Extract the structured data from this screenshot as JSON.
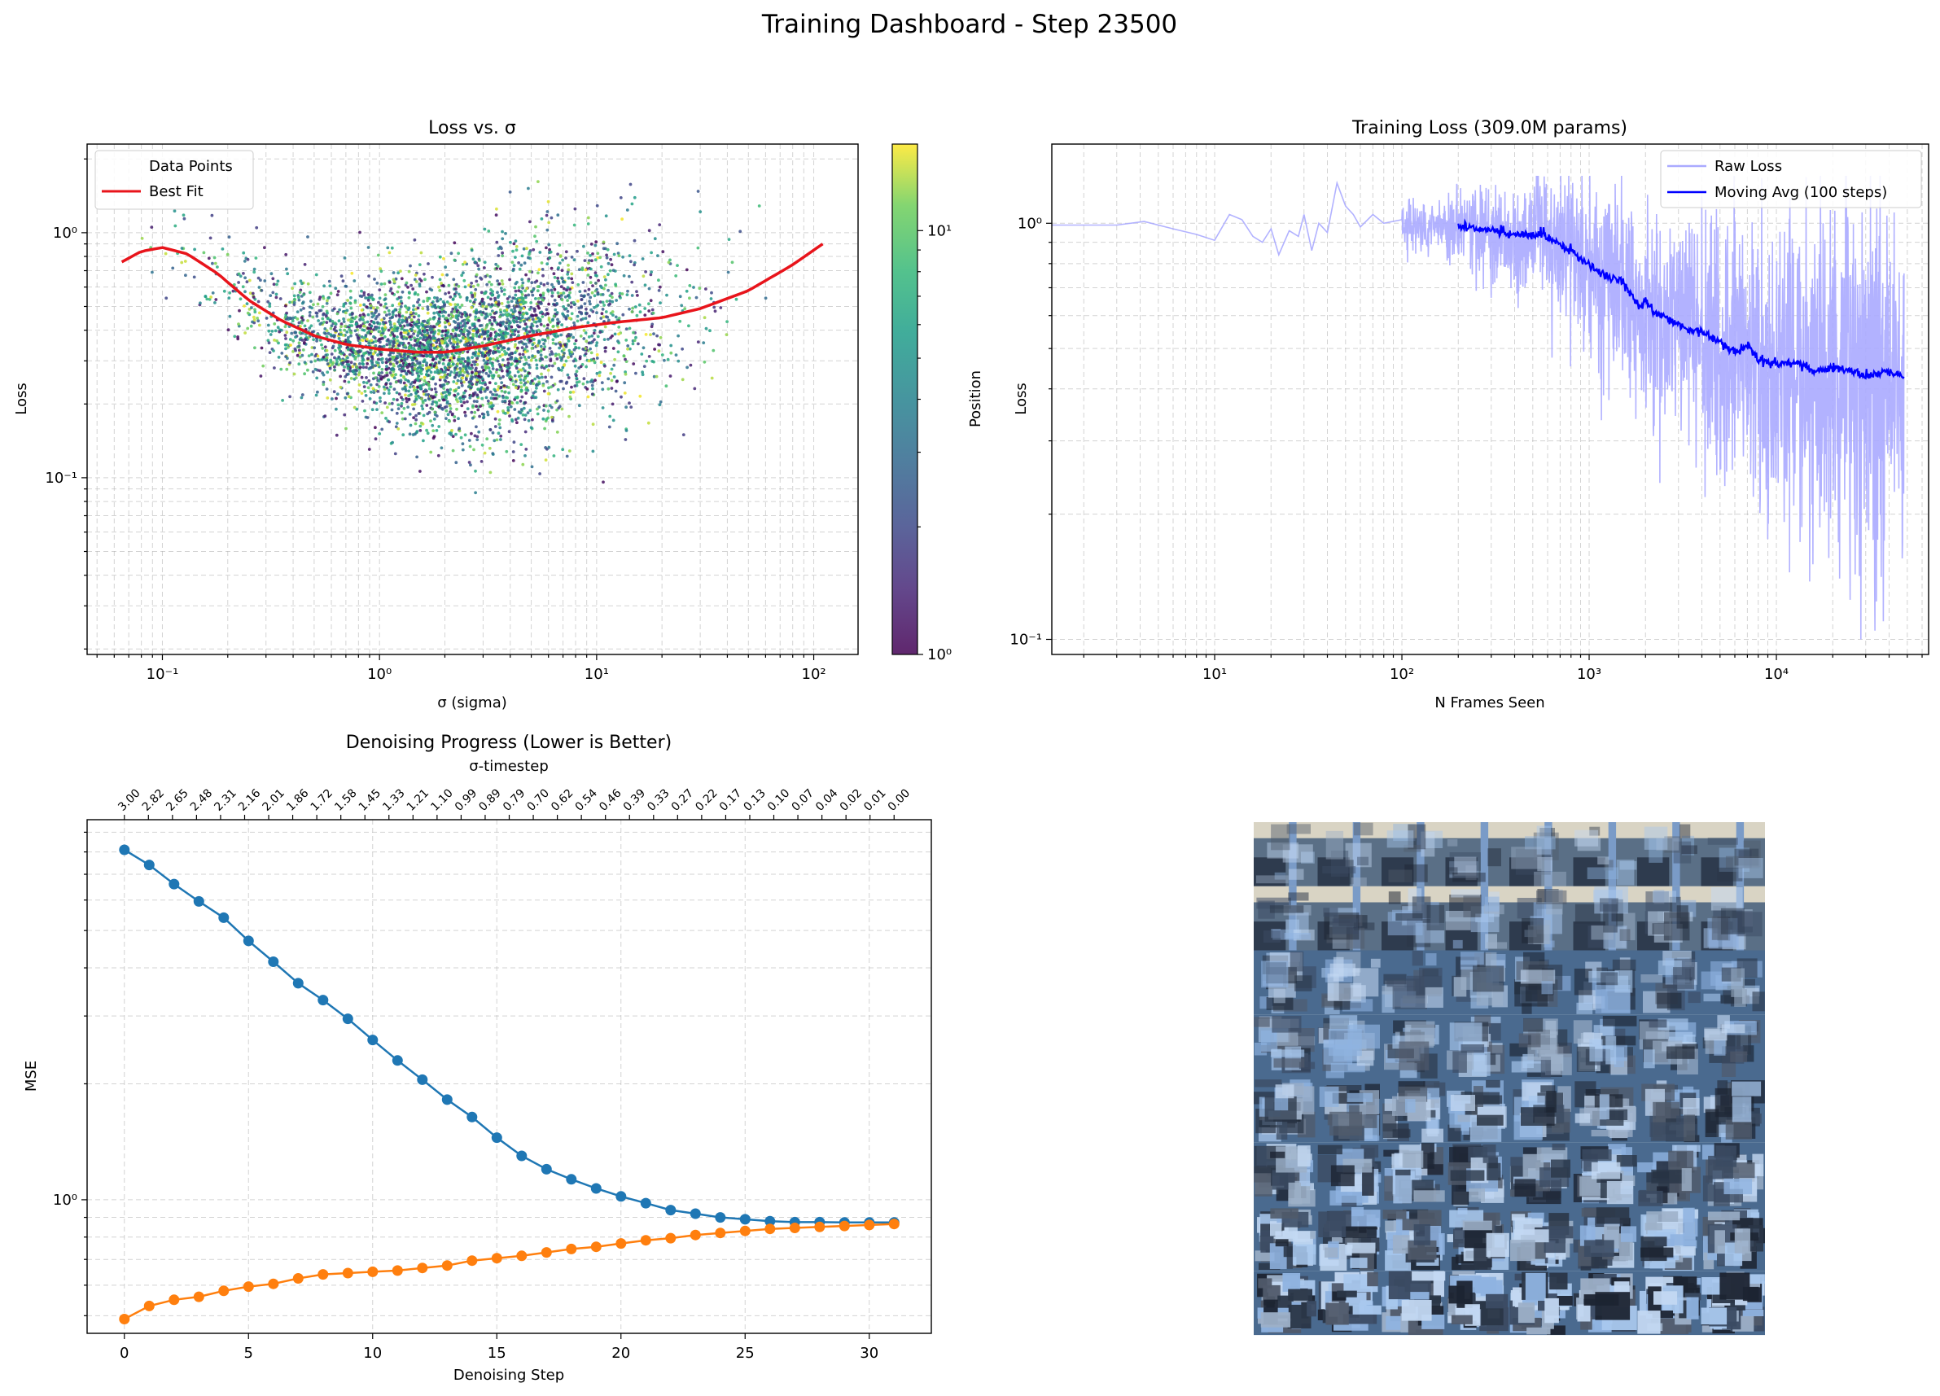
{
  "figure": {
    "suptitle": "Training Dashboard - Step 23500"
  },
  "chart_data": [
    {
      "id": "loss_vs_sigma",
      "type": "scatter",
      "title": "Loss vs. σ",
      "xlabel": "σ (sigma)",
      "ylabel": "Loss",
      "xscale": "log",
      "yscale": "log",
      "xlim": [
        0.045,
        160
      ],
      "ylim": [
        0.019,
        2.3
      ],
      "grid": true,
      "xticks": [
        {
          "v": 0.1,
          "label": "10⁻¹"
        },
        {
          "v": 1,
          "label": "10⁰"
        },
        {
          "v": 10,
          "label": "10¹"
        },
        {
          "v": 100,
          "label": "10²"
        }
      ],
      "yticks": [
        {
          "v": 0.1,
          "label": "10⁻¹"
        },
        {
          "v": 1,
          "label": "10⁰"
        }
      ],
      "legend": {
        "placement": "upper-left",
        "entries": [
          "Data Points",
          "Best Fit"
        ]
      },
      "colorbar": {
        "label": "Position",
        "scale": "log",
        "range": [
          1,
          16
        ],
        "ticks": [
          {
            "v": 1,
            "label": "10⁰"
          },
          {
            "v": 10,
            "label": "10¹"
          }
        ],
        "colormap": "viridis"
      },
      "scatter_summary": {
        "n_points_approx": 4000,
        "log10_sigma_center": 0.35,
        "log10_sigma_spread": 0.45,
        "log10_sigma_range": [
          -1.15,
          2.0
        ],
        "color_range": [
          1,
          16
        ]
      },
      "series": [
        {
          "name": "Best Fit",
          "color": "#e8141b",
          "x": [
            0.065,
            0.08,
            0.1,
            0.13,
            0.18,
            0.25,
            0.35,
            0.5,
            0.7,
            1.0,
            1.5,
            2.0,
            3.0,
            5.0,
            8.0,
            12.0,
            20.0,
            30.0,
            50.0,
            80.0,
            110.0
          ],
          "y": [
            0.76,
            0.84,
            0.87,
            0.82,
            0.68,
            0.53,
            0.44,
            0.38,
            0.35,
            0.335,
            0.325,
            0.325,
            0.345,
            0.38,
            0.41,
            0.43,
            0.45,
            0.49,
            0.58,
            0.74,
            0.9
          ]
        }
      ]
    },
    {
      "id": "training_loss",
      "type": "line",
      "title": "Training Loss (309.0M params)",
      "xlabel": "N Frames Seen",
      "ylabel": "Loss",
      "xscale": "log",
      "yscale": "log",
      "xlim": [
        1.35,
        65000
      ],
      "ylim": [
        0.092,
        1.55
      ],
      "grid": true,
      "xticks": [
        {
          "v": 10,
          "label": "10¹"
        },
        {
          "v": 100,
          "label": "10²"
        },
        {
          "v": 1000,
          "label": "10³"
        },
        {
          "v": 10000,
          "label": "10⁴"
        }
      ],
      "yticks": [
        {
          "v": 0.1,
          "label": "10⁻¹"
        },
        {
          "v": 1,
          "label": "10⁰"
        }
      ],
      "legend": {
        "placement": "upper-right",
        "entries": [
          "Raw Loss",
          "Moving Avg (100 steps)"
        ]
      },
      "series": [
        {
          "name": "Raw Loss",
          "color": "#aaaaff",
          "x": [
            1.35,
            2,
            3,
            4.2,
            6,
            8,
            10,
            12,
            14,
            16,
            18,
            20,
            22,
            25,
            28,
            30,
            33,
            36,
            40,
            45,
            50,
            55,
            60,
            70,
            80,
            100
          ],
          "y": [
            0.99,
            0.99,
            0.99,
            1.01,
            0.97,
            0.94,
            0.91,
            1.05,
            1.02,
            0.93,
            0.9,
            0.97,
            0.84,
            0.96,
            0.93,
            1.05,
            0.86,
            1.0,
            0.95,
            1.25,
            1.1,
            1.05,
            0.98,
            1.05,
            1.0,
            1.02
          ]
        },
        {
          "name": "Moving Avg (100 steps)",
          "color": "#0000ff",
          "x": [
            200,
            300,
            400,
            500,
            550,
            600,
            700,
            800,
            1000,
            1200,
            1500,
            1700,
            1900,
            2000,
            2200,
            2500,
            3000,
            3500,
            4000,
            5000,
            6000,
            7000,
            8000,
            10000,
            13000,
            16000,
            20000,
            25000,
            30000,
            40000,
            48000
          ],
          "y": [
            0.98,
            0.96,
            0.94,
            0.94,
            0.95,
            0.93,
            0.89,
            0.86,
            0.79,
            0.75,
            0.73,
            0.67,
            0.62,
            0.66,
            0.61,
            0.6,
            0.57,
            0.55,
            0.55,
            0.52,
            0.49,
            0.51,
            0.47,
            0.46,
            0.46,
            0.44,
            0.45,
            0.44,
            0.43,
            0.44,
            0.43
          ]
        }
      ]
    },
    {
      "id": "denoising_progress",
      "type": "line",
      "title": "Denoising Progress (Lower is Better)",
      "xlabel": "Denoising Step",
      "ylabel": "MSE",
      "top_xlabel": "σ-timestep",
      "yscale": "log",
      "xlim": [
        -1.5,
        32.5
      ],
      "ylim": [
        0.45,
        9.7
      ],
      "grid": true,
      "xticks": [
        0,
        5,
        10,
        15,
        20,
        25,
        30
      ],
      "yticks": [
        {
          "v": 1,
          "label": "10⁰"
        }
      ],
      "top_ticks": [
        "3.00",
        "2.82",
        "2.65",
        "2.48",
        "2.31",
        "2.16",
        "2.01",
        "1.86",
        "1.72",
        "1.58",
        "1.45",
        "1.33",
        "1.21",
        "1.10",
        "0.99",
        "0.89",
        "0.79",
        "0.70",
        "0.62",
        "0.54",
        "0.46",
        "0.39",
        "0.33",
        "0.27",
        "0.22",
        "0.17",
        "0.13",
        "0.10",
        "0.07",
        "0.04",
        "0.02",
        "0.01",
        "0.00"
      ],
      "top_positions": [
        0,
        0.969,
        1.938,
        2.906,
        3.875,
        4.844,
        5.813,
        6.781,
        7.75,
        8.719,
        9.688,
        10.656,
        11.625,
        12.594,
        13.563,
        14.531,
        15.5,
        16.469,
        17.438,
        18.406,
        19.375,
        20.344,
        21.313,
        22.281,
        23.25,
        24.219,
        25.188,
        26.156,
        27.125,
        28.094,
        29.063,
        30.031,
        31.0
      ],
      "series": [
        {
          "name": "",
          "color": "#1f77b4",
          "x": [
            0,
            1,
            2,
            3,
            4,
            5,
            6,
            7,
            8,
            9,
            10,
            11,
            12,
            13,
            14,
            15,
            16,
            17,
            18,
            19,
            20,
            21,
            22,
            23,
            24,
            25,
            26,
            27,
            28,
            29,
            30,
            31
          ],
          "y": [
            8.1,
            7.4,
            6.6,
            5.95,
            5.4,
            4.7,
            4.15,
            3.65,
            3.3,
            2.95,
            2.6,
            2.3,
            2.05,
            1.82,
            1.64,
            1.45,
            1.3,
            1.2,
            1.13,
            1.07,
            1.02,
            0.98,
            0.94,
            0.92,
            0.9,
            0.89,
            0.88,
            0.875,
            0.875,
            0.873,
            0.873,
            0.873
          ]
        },
        {
          "name": "",
          "color": "#ff7f0e",
          "x": [
            0,
            1,
            2,
            3,
            4,
            5,
            6,
            7,
            8,
            9,
            10,
            11,
            12,
            13,
            14,
            15,
            16,
            17,
            18,
            19,
            20,
            21,
            22,
            23,
            24,
            25,
            26,
            27,
            28,
            29,
            30,
            31
          ],
          "y": [
            0.49,
            0.53,
            0.55,
            0.56,
            0.58,
            0.595,
            0.605,
            0.625,
            0.64,
            0.645,
            0.65,
            0.655,
            0.665,
            0.675,
            0.695,
            0.705,
            0.715,
            0.73,
            0.745,
            0.755,
            0.77,
            0.785,
            0.795,
            0.81,
            0.82,
            0.83,
            0.84,
            0.845,
            0.85,
            0.855,
            0.86,
            0.865
          ]
        }
      ]
    }
  ],
  "image_grid": {
    "rows": 8,
    "cols": 8
  }
}
